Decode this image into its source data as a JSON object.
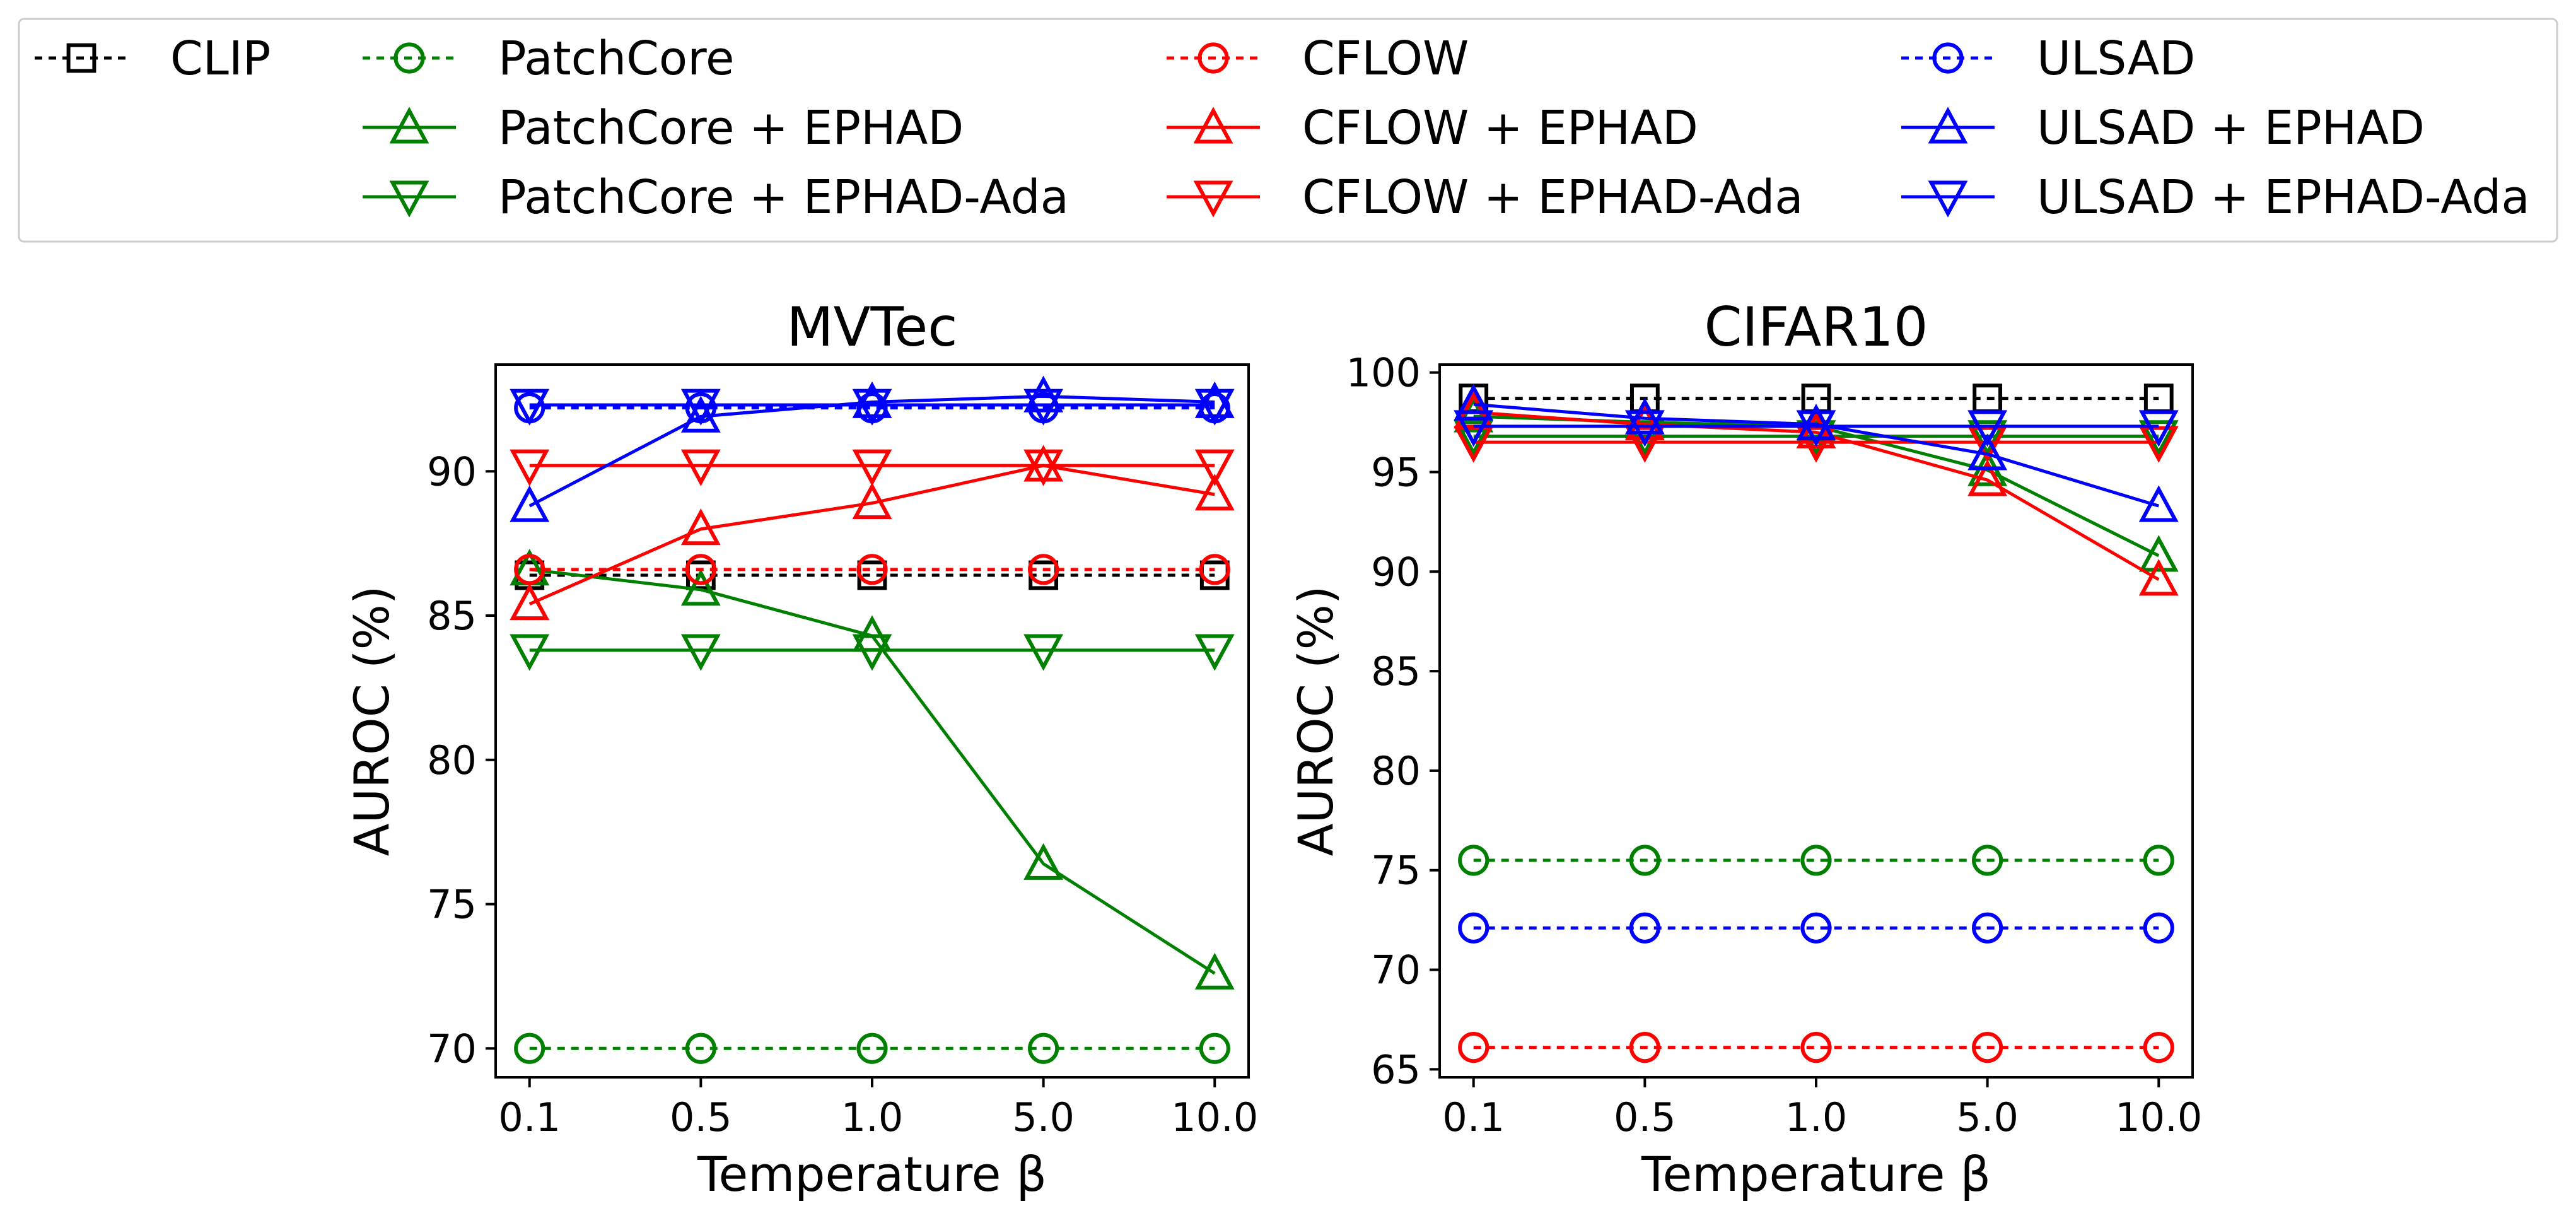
{
  "legend": {
    "placement": "top",
    "entries": [
      {
        "label": "CLIP",
        "color": "#000000",
        "marker": "square",
        "dash": true
      },
      {
        "label": "PatchCore",
        "color": "#008000",
        "marker": "circle",
        "dash": true
      },
      {
        "label": "PatchCore + EPHAD",
        "color": "#008000",
        "marker": "triangle-up",
        "dash": false
      },
      {
        "label": "PatchCore + EPHAD-Ada",
        "color": "#008000",
        "marker": "triangle-down",
        "dash": false
      },
      {
        "label": "CFLOW",
        "color": "#ff0000",
        "marker": "circle",
        "dash": true
      },
      {
        "label": "CFLOW + EPHAD",
        "color": "#ff0000",
        "marker": "triangle-up",
        "dash": false
      },
      {
        "label": "CFLOW + EPHAD-Ada",
        "color": "#ff0000",
        "marker": "triangle-down",
        "dash": false
      },
      {
        "label": "ULSAD",
        "color": "#0000ff",
        "marker": "circle",
        "dash": true
      },
      {
        "label": "ULSAD + EPHAD",
        "color": "#0000ff",
        "marker": "triangle-up",
        "dash": false
      },
      {
        "label": "ULSAD + EPHAD-Ada",
        "color": "#0000ff",
        "marker": "triangle-down",
        "dash": false
      }
    ]
  },
  "chart_data": [
    {
      "type": "line",
      "title": "MVTec",
      "xlabel": "Temperature β",
      "ylabel": "AUROC (%)",
      "categories": [
        "0.1",
        "0.5",
        "1.0",
        "5.0",
        "10.0"
      ],
      "ylim": [
        69.0,
        93.7
      ],
      "yticks": [
        70,
        75,
        80,
        85,
        90
      ],
      "grid": false,
      "series": [
        {
          "name": "CLIP",
          "color": "#000000",
          "marker": "square",
          "dash": true,
          "values": [
            86.4,
            86.4,
            86.4,
            86.4,
            86.4
          ]
        },
        {
          "name": "PatchCore",
          "color": "#008000",
          "marker": "circle",
          "dash": true,
          "values": [
            70.0,
            70.0,
            70.0,
            70.0,
            70.0
          ]
        },
        {
          "name": "PatchCore + EPHAD",
          "color": "#008000",
          "marker": "triangle-up",
          "dash": false,
          "values": [
            86.6,
            85.9,
            84.3,
            76.4,
            72.6
          ]
        },
        {
          "name": "PatchCore + EPHAD-Ada",
          "color": "#008000",
          "marker": "triangle-down",
          "dash": false,
          "values": [
            83.8,
            83.8,
            83.8,
            83.8,
            83.8
          ]
        },
        {
          "name": "CFLOW",
          "color": "#ff0000",
          "marker": "circle",
          "dash": true,
          "values": [
            86.6,
            86.6,
            86.6,
            86.6,
            86.6
          ]
        },
        {
          "name": "CFLOW + EPHAD",
          "color": "#ff0000",
          "marker": "triangle-up",
          "dash": false,
          "values": [
            85.4,
            88.0,
            88.9,
            90.2,
            89.2
          ]
        },
        {
          "name": "CFLOW + EPHAD-Ada",
          "color": "#ff0000",
          "marker": "triangle-down",
          "dash": false,
          "values": [
            90.2,
            90.2,
            90.2,
            90.2,
            90.2
          ]
        },
        {
          "name": "ULSAD",
          "color": "#0000ff",
          "marker": "circle",
          "dash": true,
          "values": [
            92.2,
            92.2,
            92.2,
            92.2,
            92.2
          ]
        },
        {
          "name": "ULSAD + EPHAD",
          "color": "#0000ff",
          "marker": "triangle-up",
          "dash": false,
          "values": [
            88.8,
            91.9,
            92.4,
            92.6,
            92.4
          ]
        },
        {
          "name": "ULSAD + EPHAD-Ada",
          "color": "#0000ff",
          "marker": "triangle-down",
          "dash": false,
          "values": [
            92.3,
            92.3,
            92.3,
            92.3,
            92.3
          ]
        }
      ]
    },
    {
      "type": "line",
      "title": "CIFAR10",
      "xlabel": "Temperature β",
      "ylabel": "AUROC (%)",
      "categories": [
        "0.1",
        "0.5",
        "1.0",
        "5.0",
        "10.0"
      ],
      "ylim": [
        64.6,
        100.4
      ],
      "yticks": [
        65,
        70,
        75,
        80,
        85,
        90,
        95,
        100
      ],
      "grid": false,
      "series": [
        {
          "name": "CLIP",
          "color": "#000000",
          "marker": "square",
          "dash": true,
          "values": [
            98.7,
            98.7,
            98.7,
            98.7,
            98.7
          ]
        },
        {
          "name": "PatchCore",
          "color": "#008000",
          "marker": "circle",
          "dash": true,
          "values": [
            75.5,
            75.5,
            75.5,
            75.5,
            75.5
          ]
        },
        {
          "name": "PatchCore + EPHAD",
          "color": "#008000",
          "marker": "triangle-up",
          "dash": false,
          "values": [
            97.8,
            97.5,
            97.3,
            95.1,
            90.8
          ]
        },
        {
          "name": "PatchCore + EPHAD-Ada",
          "color": "#008000",
          "marker": "triangle-down",
          "dash": false,
          "values": [
            96.8,
            96.8,
            96.8,
            96.8,
            96.8
          ]
        },
        {
          "name": "CFLOW",
          "color": "#ff0000",
          "marker": "circle",
          "dash": true,
          "values": [
            66.1,
            66.1,
            66.1,
            66.1,
            66.1
          ]
        },
        {
          "name": "CFLOW + EPHAD",
          "color": "#ff0000",
          "marker": "triangle-up",
          "dash": false,
          "values": [
            98.0,
            97.4,
            97.0,
            94.6,
            89.6
          ]
        },
        {
          "name": "CFLOW + EPHAD-Ada",
          "color": "#ff0000",
          "marker": "triangle-down",
          "dash": false,
          "values": [
            96.5,
            96.5,
            96.5,
            96.5,
            96.5
          ]
        },
        {
          "name": "ULSAD",
          "color": "#0000ff",
          "marker": "circle",
          "dash": true,
          "values": [
            72.1,
            72.1,
            72.1,
            72.1,
            72.1
          ]
        },
        {
          "name": "ULSAD + EPHAD",
          "color": "#0000ff",
          "marker": "triangle-up",
          "dash": false,
          "values": [
            98.4,
            97.7,
            97.4,
            95.9,
            93.3
          ]
        },
        {
          "name": "ULSAD + EPHAD-Ada",
          "color": "#0000ff",
          "marker": "triangle-down",
          "dash": false,
          "values": [
            97.3,
            97.3,
            97.3,
            97.3,
            97.3
          ]
        }
      ]
    }
  ]
}
